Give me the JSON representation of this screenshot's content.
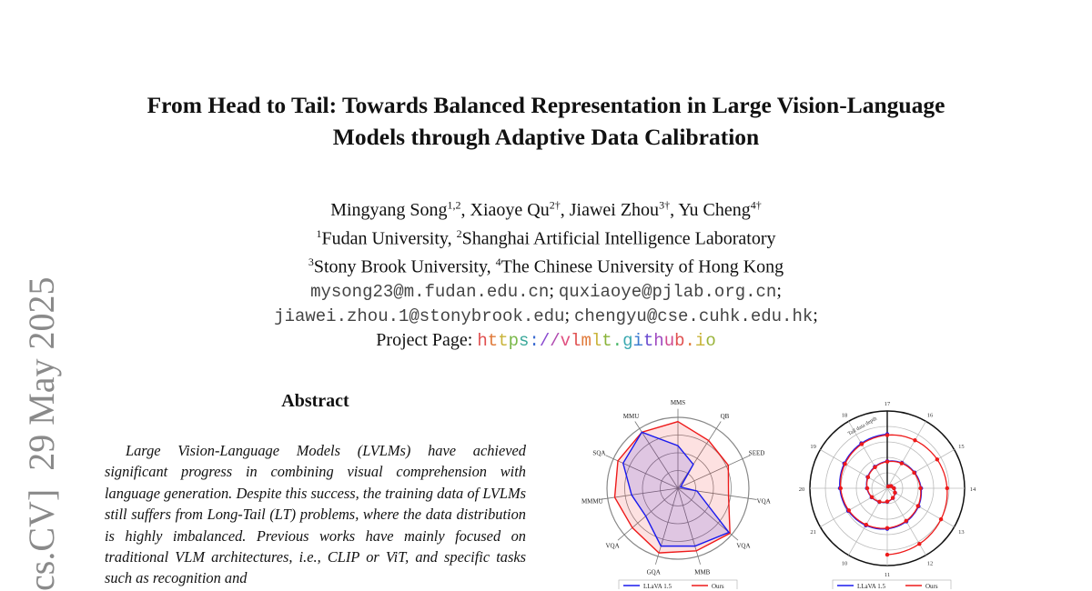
{
  "title": {
    "line1": "From Head to Tail: Towards Balanced Representation in Large Vision-Language",
    "line2": "Models through Adaptive Data Calibration"
  },
  "authors": [
    {
      "name": "Mingyang Song",
      "sup": "1,2",
      "sep": ", "
    },
    {
      "name": "Xiaoye Qu",
      "sup": "2†",
      "sep": ", "
    },
    {
      "name": "Jiawei Zhou",
      "sup": "3†",
      "sep": ", "
    },
    {
      "name": "Yu Cheng",
      "sup": "4†",
      "sep": ""
    }
  ],
  "affiliations": {
    "line1": [
      {
        "sup": "1",
        "text": "Fudan University, "
      },
      {
        "sup": "2",
        "text": "Shanghai Artificial Intelligence Laboratory"
      }
    ],
    "line2": [
      {
        "sup": "3",
        "text": "Stony Brook University, "
      },
      {
        "sup": "4",
        "text": "The Chinese University of Hong Kong"
      }
    ]
  },
  "emails": {
    "line1a": "mysong23@m.fudan.edu.cn",
    "line1b": "quxiaoye@pjlab.org.cn",
    "line2a": "jiawei.zhou.1@stonybrook.edu",
    "line2b": "chengyu@cse.cuhk.edu.hk",
    "sep": "; "
  },
  "project": {
    "label": "Project Page: ",
    "url": "https://vlmlt.github.io",
    "colors": [
      "#e05050",
      "#e07a3a",
      "#c9b43a",
      "#7ab84a",
      "#3aa89a",
      "#3a6ad0",
      "#8a4ad0",
      "#b04ab0",
      "#e05080",
      "#e05050",
      "#e07a3a",
      "#c9b43a",
      "#8ab43a",
      "#4ab86a",
      "#3aa8b0",
      "#3a7ad0",
      "#6a4ad0",
      "#a04ac0",
      "#d04a90",
      "#e05050",
      "#e07a3a",
      "#c9b43a",
      "#9ab43a"
    ]
  },
  "stamp": "cs.CV]  29 May 2025",
  "abstract": {
    "heading": "Abstract",
    "text": "Large Vision-Language Models (LVLMs) have achieved significant progress in combining visual comprehension with language generation. Despite this success, the training data of LVLMs still suffers from Long-Tail (LT) problems, where the data distribution is highly imbalanced. Previous works have mainly focused on traditional VLM architectures, i.e., CLIP or ViT, and specific tasks such as recognition and"
  },
  "chart_data": [
    {
      "type": "radar",
      "axes": [
        "MMS",
        "QB",
        "SEED",
        "VQA",
        "VQA",
        "MMB",
        "GQA",
        "VQA",
        "MMMU",
        "SQA",
        "MMU"
      ],
      "range": [
        0,
        1
      ],
      "series": [
        {
          "name": "LLaVA 1.5",
          "color": "#1a1aee",
          "values": [
            0.6,
            0.4,
            0.04,
            0.27,
            0.95,
            0.85,
            0.85,
            0.6,
            0.66,
            0.85,
            0.94
          ]
        },
        {
          "name": "Ours",
          "color": "#ee1a1a",
          "values": [
            0.94,
            0.8,
            0.78,
            0.72,
            0.97,
            0.92,
            0.95,
            0.85,
            0.9,
            0.93,
            0.94
          ]
        }
      ],
      "legend": "bottom"
    },
    {
      "type": "polar-spiral",
      "tick_labels": [
        "17",
        "16",
        "15",
        "14",
        "13",
        "12",
        "11",
        "10",
        "21",
        "20",
        "19",
        "18"
      ],
      "annotation": "Tail data depth",
      "series": [
        {
          "name": "LLaVA 1.5",
          "color": "#1a1aee",
          "turns": 2.0
        },
        {
          "name": "Ours",
          "color": "#ee1a1a",
          "turns": 2.5
        }
      ],
      "legend": "bottom"
    }
  ]
}
